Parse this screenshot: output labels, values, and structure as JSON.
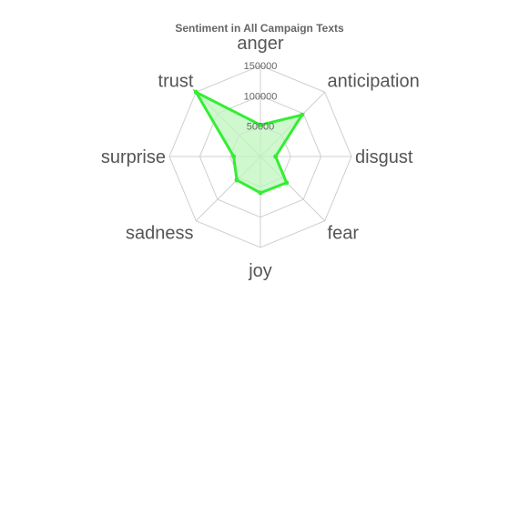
{
  "chart_data": {
    "type": "radar",
    "title": "Sentiment in All Campaign Texts",
    "categories": [
      "anger",
      "anticipation",
      "disgust",
      "fear",
      "joy",
      "sadness",
      "surprise",
      "trust"
    ],
    "series": [
      {
        "values": [
          52000,
          97000,
          25000,
          61000,
          60000,
          55000,
          44000,
          150000
        ],
        "color": "#33ee33",
        "fill": "#bff5bf"
      }
    ],
    "ticks": [
      50000,
      100000,
      150000
    ],
    "rlim": [
      0,
      150000
    ],
    "legend": "none",
    "grid": true
  }
}
